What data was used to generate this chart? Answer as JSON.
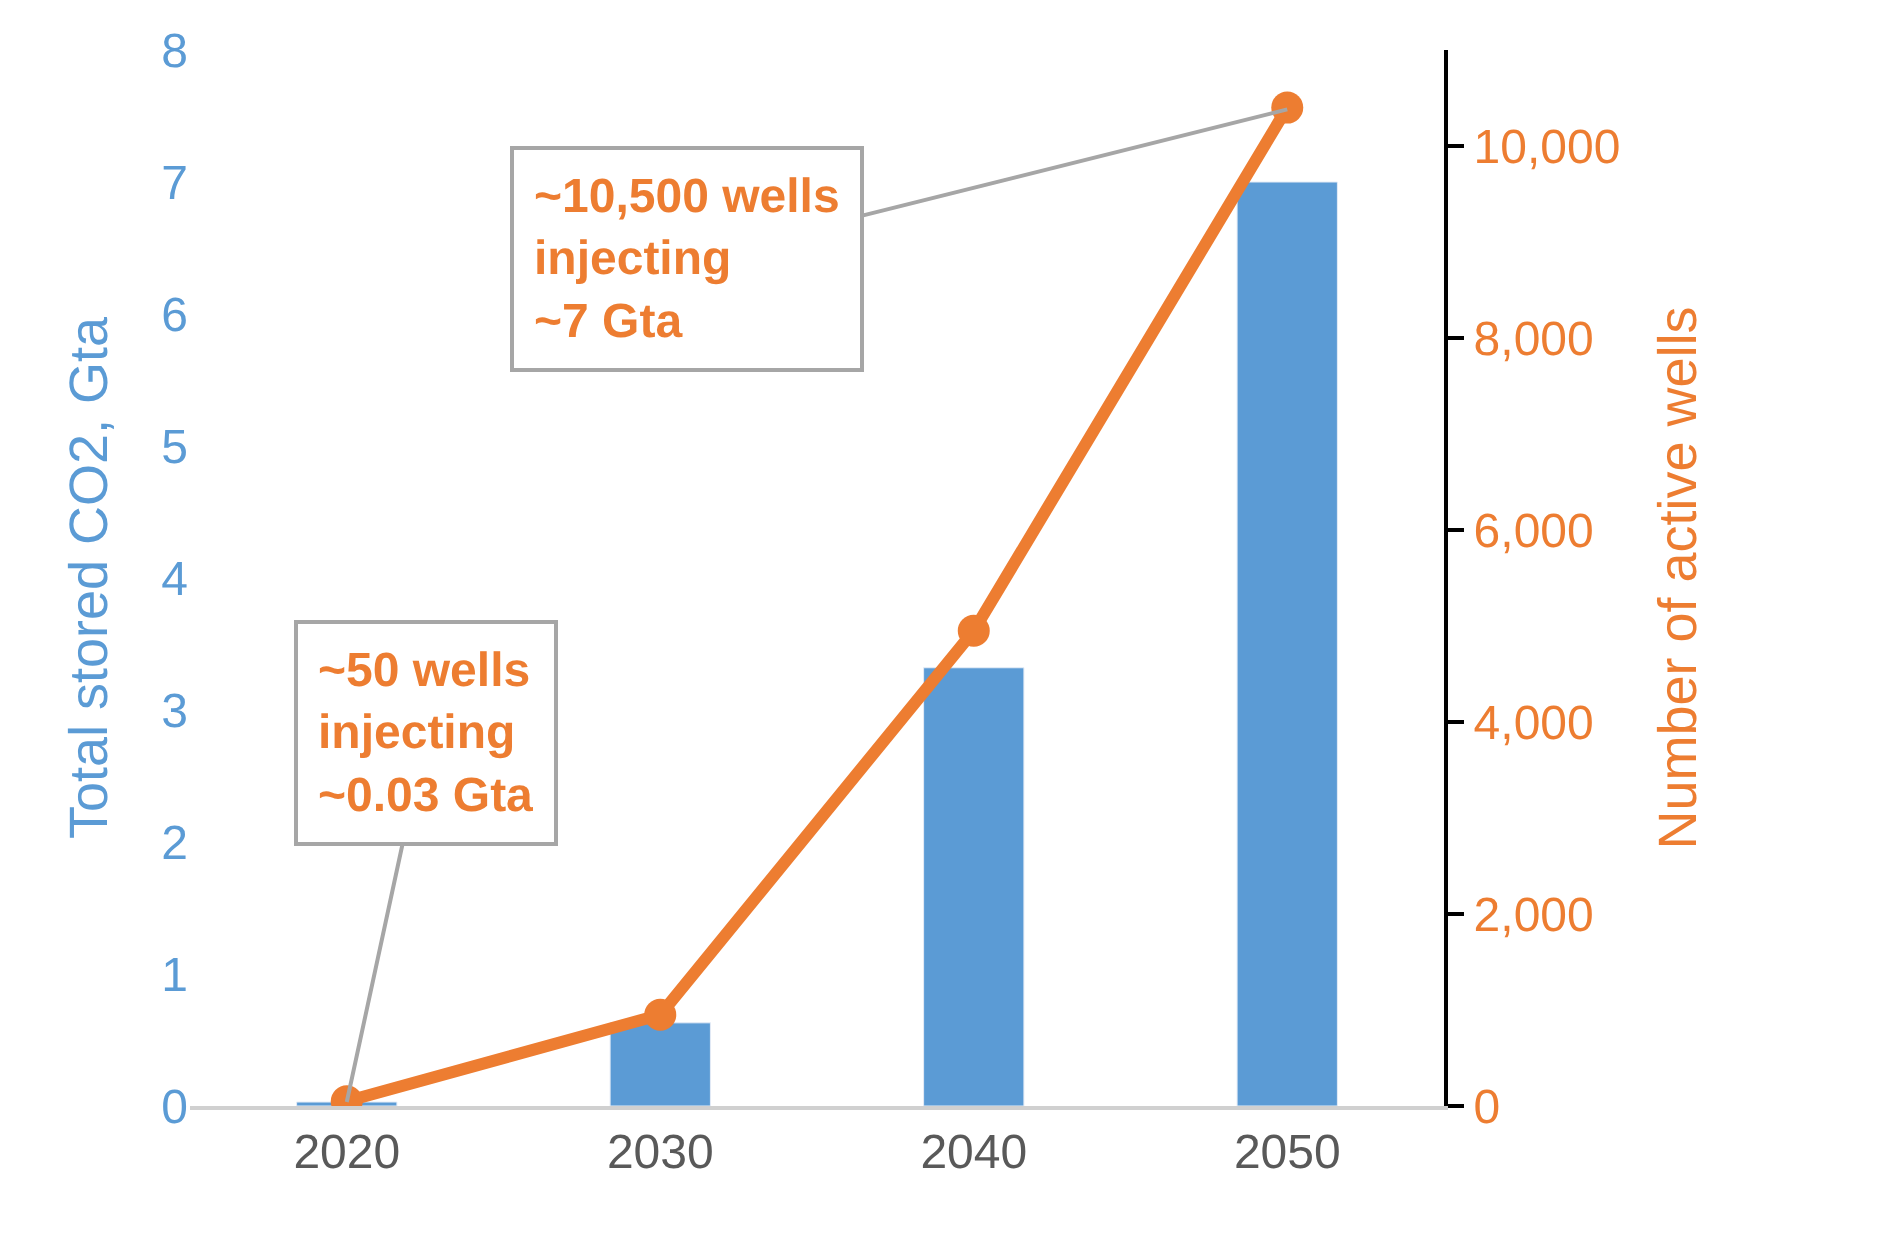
{
  "chart_data": {
    "type": "bar",
    "categories": [
      "2020",
      "2030",
      "2040",
      "2050"
    ],
    "ylabel": "Total stored CO2, Gta",
    "y2label": "Number of active wells",
    "series": [
      {
        "color": "#5b9bd5",
        "values": [
          0.03,
          0.63,
          3.32,
          7.0
        ]
      },
      {
        "type": "line",
        "axis": "y2",
        "color": "#ed7d31",
        "marker": "circle",
        "values": [
          50,
          950,
          4950,
          10400
        ]
      }
    ],
    "ylim": [
      0,
      8
    ],
    "yticks": [
      0,
      1,
      2,
      3,
      4,
      5,
      6,
      7,
      8
    ],
    "y2lim": [
      0,
      11000
    ],
    "y2ticks": [
      {
        "value": 0,
        "label": "0"
      },
      {
        "value": 2000,
        "label": "2,000"
      },
      {
        "value": 4000,
        "label": "4,000"
      },
      {
        "value": 6000,
        "label": "6,000"
      },
      {
        "value": 8000,
        "label": "8,000"
      },
      {
        "value": 10000,
        "label": "10,000"
      }
    ],
    "annotations": [
      {
        "text": "~50 wells\ninjecting\n~0.03 Gta",
        "x": "2020",
        "y": 0.03
      },
      {
        "text": "~10,500 wells\ninjecting\n~7 Gta",
        "x": "2050",
        "y": 7.55
      }
    ]
  }
}
